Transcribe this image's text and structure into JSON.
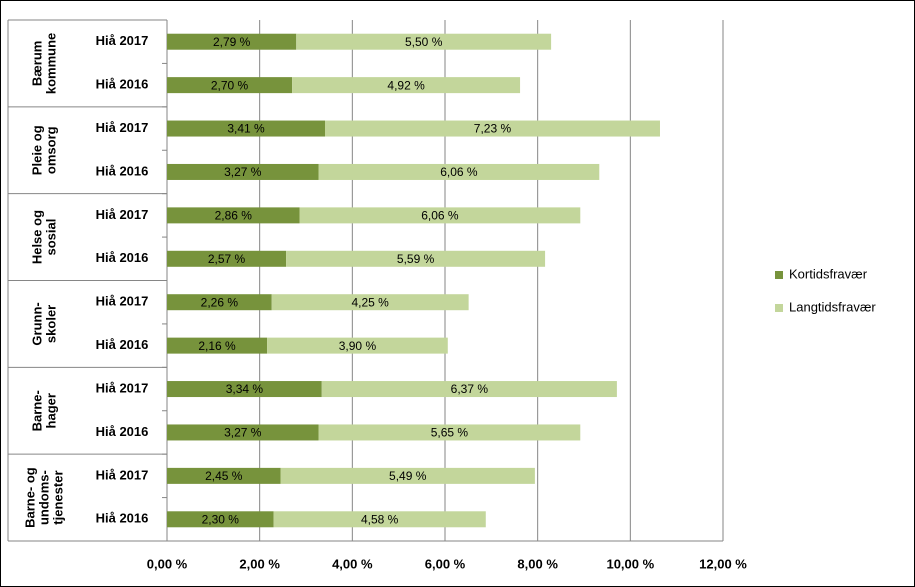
{
  "chart_data": {
    "type": "bar",
    "orientation": "horizontal",
    "stacked": true,
    "groups": [
      {
        "label": [
          "Bærum",
          "kommune"
        ],
        "categories": [
          "Hiå 2017",
          "Hiå 2016"
        ]
      },
      {
        "label": [
          "Pleie og",
          "omsorg"
        ],
        "categories": [
          "Hiå 2017",
          "Hiå 2016"
        ]
      },
      {
        "label": [
          "Helse og",
          "sosial"
        ],
        "categories": [
          "Hiå 2017",
          "Hiå 2016"
        ]
      },
      {
        "label": [
          "Grunn-",
          "skoler"
        ],
        "categories": [
          "Hiå 2017",
          "Hiå 2016"
        ]
      },
      {
        "label": [
          "Barne-",
          "hager"
        ],
        "categories": [
          "Hiå 2017",
          "Hiå 2016"
        ]
      },
      {
        "label": [
          "Barne- og",
          "undoms-",
          "tjenester"
        ],
        "categories": [
          "Hiå 2017",
          "Hiå 2016"
        ]
      }
    ],
    "series": [
      {
        "name": "Kortidsfravær",
        "color": "#77933c",
        "values": [
          2.79,
          2.7,
          3.41,
          3.27,
          2.86,
          2.57,
          2.26,
          2.16,
          3.34,
          3.27,
          2.45,
          2.3
        ],
        "value_labels": [
          "2,79 %",
          "2,70 %",
          "3,41 %",
          "3,27 %",
          "2,86 %",
          "2,57 %",
          "2,26 %",
          "2,16 %",
          "3,34 %",
          "3,27 %",
          "2,45 %",
          "2,30 %"
        ]
      },
      {
        "name": "Langtidsfravær",
        "color": "#c3d69b",
        "values": [
          5.5,
          4.92,
          7.23,
          6.06,
          6.06,
          5.59,
          4.25,
          3.9,
          6.37,
          5.65,
          5.49,
          4.58
        ],
        "value_labels": [
          "5,50 %",
          "4,92 %",
          "7,23 %",
          "6,06 %",
          "6,06 %",
          "5,59 %",
          "4,25 %",
          "3,90 %",
          "6,37 %",
          "5,65 %",
          "5,49 %",
          "4,58 %"
        ]
      }
    ],
    "xlim": [
      0,
      12
    ],
    "xticks": [
      {
        "value": 0,
        "label": "0,00 %"
      },
      {
        "value": 2,
        "label": "2,00 %"
      },
      {
        "value": 4,
        "label": "4,00 %"
      },
      {
        "value": 6,
        "label": "6,00 %"
      },
      {
        "value": 8,
        "label": "8,00 %"
      },
      {
        "value": 10,
        "label": "10,00 %"
      },
      {
        "value": 12,
        "label": "12,00 %"
      }
    ],
    "grid": true,
    "legend": "right"
  }
}
